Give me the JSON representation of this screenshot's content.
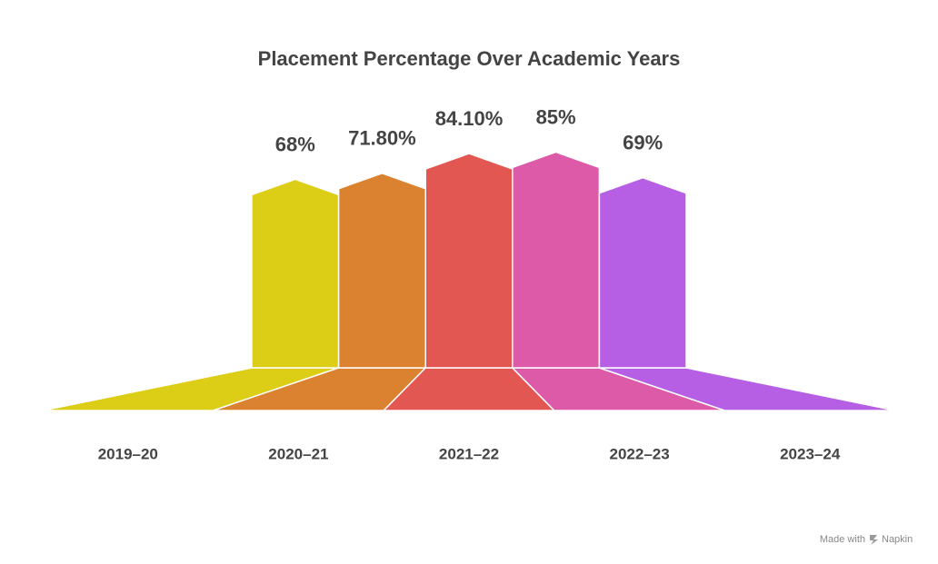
{
  "chart_data": {
    "type": "bar",
    "title": "Placement Percentage Over Academic Years",
    "categories": [
      "2019–20",
      "2020–21",
      "2021–22",
      "2022–23",
      "2023–24"
    ],
    "values": [
      68,
      71.8,
      84.1,
      85,
      69
    ],
    "value_labels": [
      "68%",
      "71.80%",
      "84.10%",
      "85%",
      "69%"
    ],
    "colors": [
      "#dccd16",
      "#db8230",
      "#e35752",
      "#dd5aa9",
      "#b65ee4"
    ],
    "ylim": [
      -40,
      100
    ]
  },
  "footer": {
    "made_with": "Made with",
    "brand": "Napkin"
  }
}
